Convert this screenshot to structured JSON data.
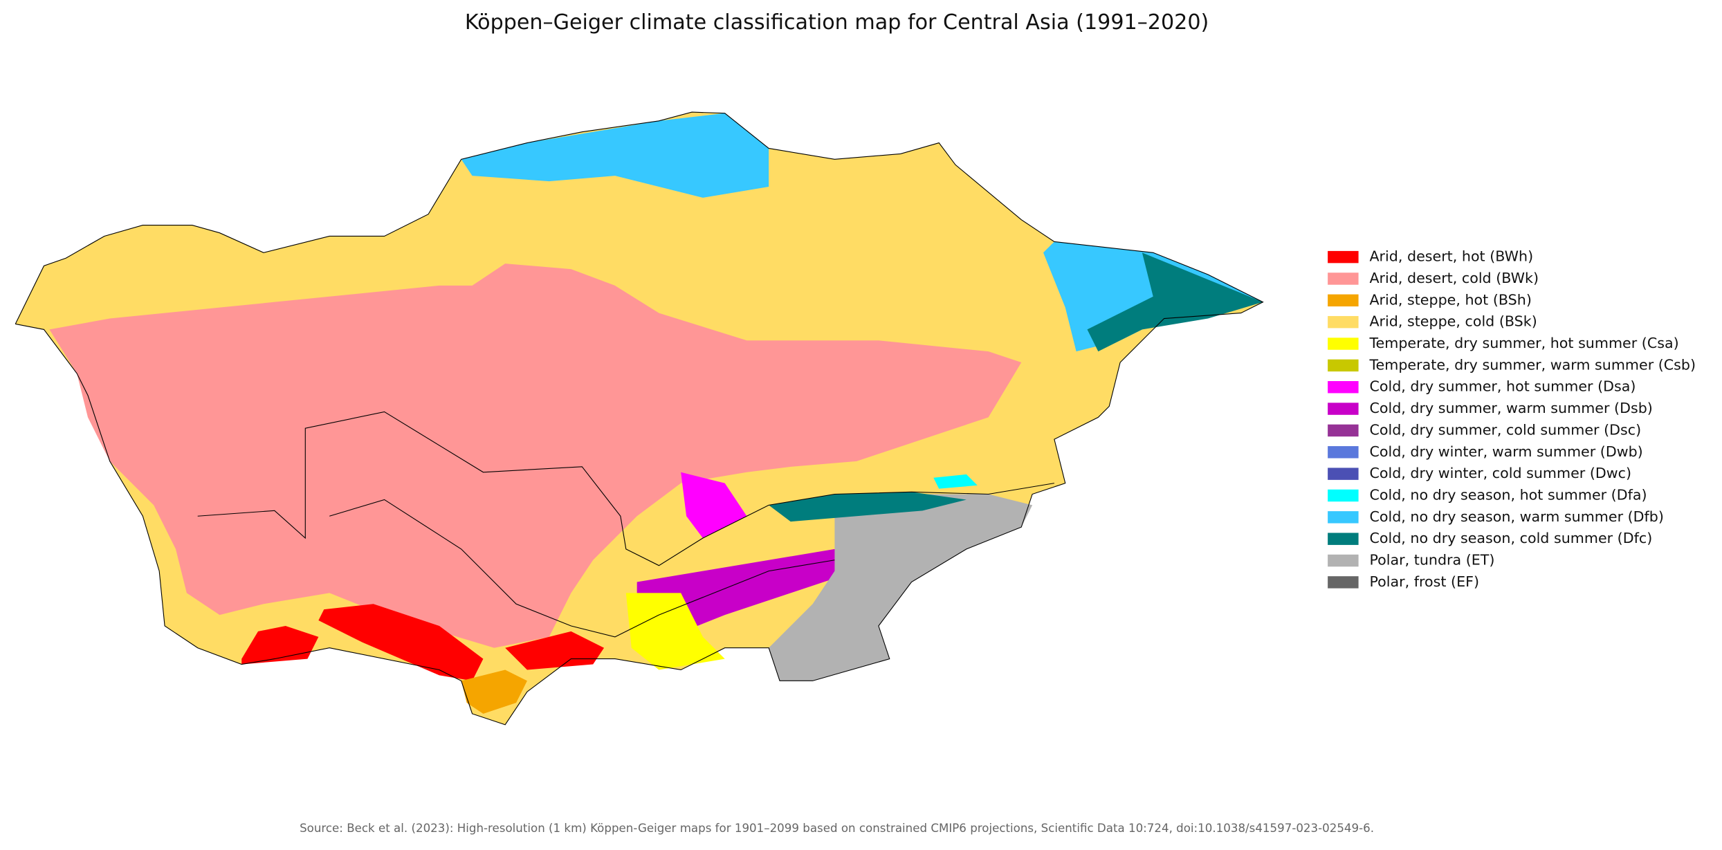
{
  "title": "Köppen–Geiger climate classification map for Central Asia (1991–2020)",
  "legend": [
    {
      "label": "Arid, desert, hot (BWh)",
      "color": "#ff0000"
    },
    {
      "label": "Arid, desert, cold (BWk)",
      "color": "#ff9696"
    },
    {
      "label": "Arid, steppe, hot (BSh)",
      "color": "#f5a500"
    },
    {
      "label": "Arid, steppe, cold (BSk)",
      "color": "#ffdc64"
    },
    {
      "label": "Temperate, dry summer, hot summer (Csa)",
      "color": "#ffff00"
    },
    {
      "label": "Temperate, dry summer, warm summer (Csb)",
      "color": "#c8c800"
    },
    {
      "label": "Cold, dry summer, hot summer (Dsa)",
      "color": "#ff00ff"
    },
    {
      "label": "Cold, dry summer, warm summer (Dsb)",
      "color": "#c800c8"
    },
    {
      "label": "Cold, dry summer, cold summer (Dsc)",
      "color": "#963296"
    },
    {
      "label": "Cold, dry winter, warm summer (Dwb)",
      "color": "#5a78dc"
    },
    {
      "label": "Cold, dry winter, cold summer (Dwc)",
      "color": "#4b50b4"
    },
    {
      "label": "Cold, no dry season, hot summer (Dfa)",
      "color": "#00ffff"
    },
    {
      "label": "Cold, no dry season, warm summer (Dfb)",
      "color": "#37c8ff"
    },
    {
      "label": "Cold, no dry season, cold summer (Dfc)",
      "color": "#007d7d"
    },
    {
      "label": "Polar, tundra (ET)",
      "color": "#b2b2b2"
    },
    {
      "label": "Polar, frost (EF)",
      "color": "#666666"
    }
  ],
  "source": "Source: Beck et al. (2023): High-resolution (1 km) Köppen-Geiger maps for 1901–2099 based on constrained CMIP6 projections, Scientific Data 10:724, doi:10.1038/s41597-023-02549-6."
}
